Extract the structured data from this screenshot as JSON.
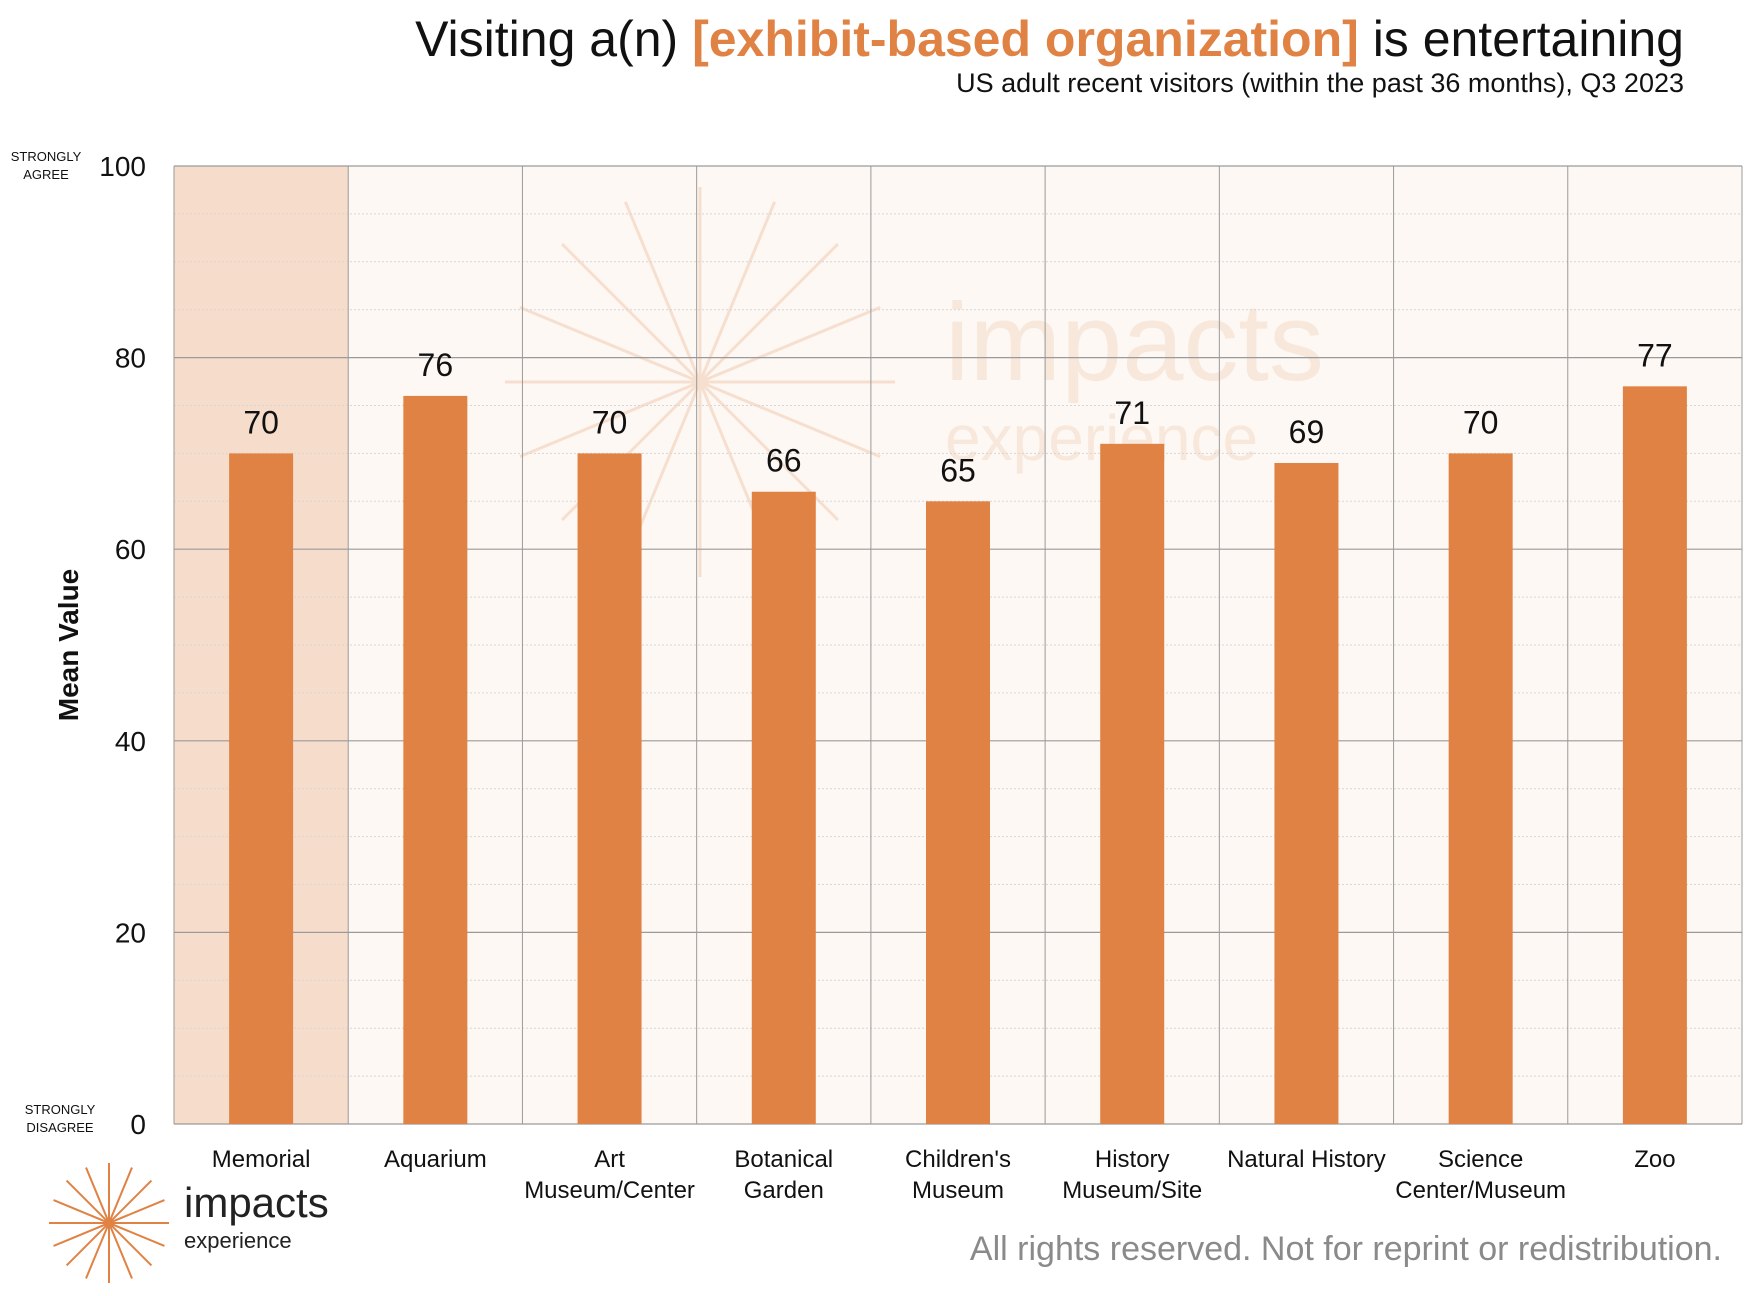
{
  "title": {
    "prefix": "Visiting a(n) ",
    "highlight": "[exhibit-based organization]",
    "suffix": " is entertaining",
    "subtitle": "US adult recent visitors (within the past 36 months), Q3 2023"
  },
  "footer": "All rights reserved. Not for reprint or redistribution.",
  "logo": {
    "name": "impacts",
    "sub": "experience",
    "icon": "starburst-icon"
  },
  "watermark": {
    "name": "impacts",
    "sub": "experience"
  },
  "colors": {
    "bar": "#e08243",
    "highlight_column": "#f6dccb",
    "plot_bg": "#fdf8f4",
    "accent": "#e08243"
  },
  "chart_data": {
    "type": "bar",
    "ylabel": "Mean Value",
    "ylim": [
      0,
      100
    ],
    "yticks": [
      0,
      20,
      40,
      60,
      80,
      100
    ],
    "y_top_note": [
      "STRONGLY",
      "AGREE"
    ],
    "y_bottom_note": [
      "STRONGLY",
      "DISAGREE"
    ],
    "highlighted_category": "Memorial",
    "categories": [
      [
        "Memorial"
      ],
      [
        "Aquarium"
      ],
      [
        "Art",
        "Museum/Center"
      ],
      [
        "Botanical",
        "Garden"
      ],
      [
        "Children's",
        "Museum"
      ],
      [
        "History",
        "Museum/Site"
      ],
      [
        "Natural History"
      ],
      [
        "Science",
        "Center/Museum"
      ],
      [
        "Zoo"
      ]
    ],
    "values": [
      70,
      76,
      70,
      66,
      65,
      71,
      69,
      70,
      77
    ],
    "grid": true
  }
}
